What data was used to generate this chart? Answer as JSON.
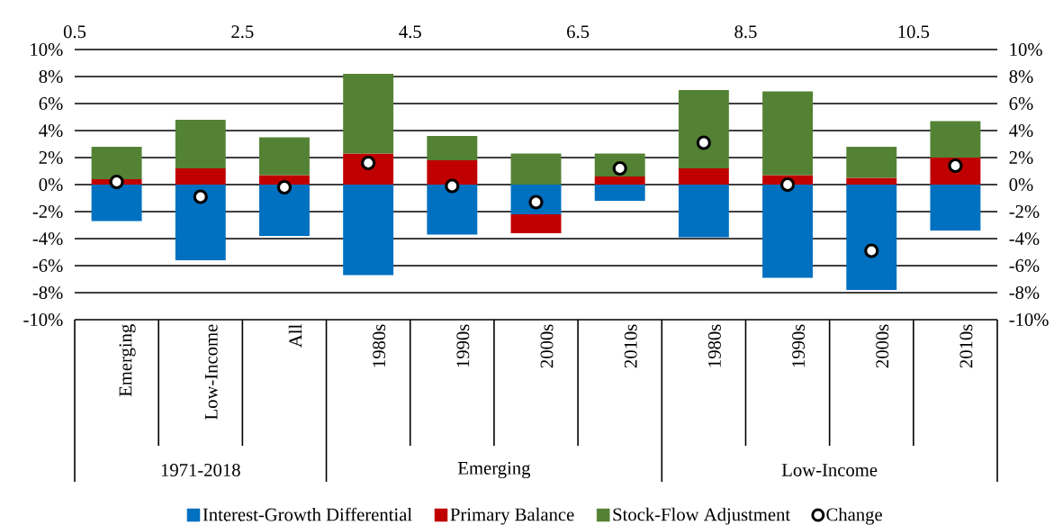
{
  "chart_data": {
    "type": "bar",
    "stacked": true,
    "categories": [
      "Emerging",
      "Low-Income",
      "All",
      "1980s",
      "1990s",
      "2000s",
      "2010s",
      "1980s",
      "1990s",
      "2000s",
      "2010s"
    ],
    "series": [
      {
        "name": "Interest-Growth Differential",
        "color": "#0070c0",
        "values": [
          -2.7,
          -5.6,
          -3.8,
          -6.7,
          -3.7,
          -2.2,
          -1.2,
          -3.9,
          -6.9,
          -7.8,
          -3.4
        ]
      },
      {
        "name": "Primary Balance",
        "color": "#c00000",
        "values": [
          0.4,
          1.2,
          0.7,
          2.3,
          1.8,
          -1.4,
          0.6,
          1.2,
          0.7,
          0.5,
          2.0
        ]
      },
      {
        "name": "Stock-Flow Adjustment",
        "color": "#548235",
        "values": [
          2.4,
          3.6,
          2.8,
          5.9,
          1.8,
          2.3,
          1.7,
          5.8,
          6.2,
          2.3,
          2.7
        ]
      },
      {
        "name": "Change",
        "type": "scatter",
        "marker": "circle",
        "color": "#000000",
        "values": [
          0.2,
          -0.9,
          -0.2,
          1.6,
          -0.1,
          -1.3,
          1.2,
          3.1,
          0.0,
          -4.9,
          1.4
        ]
      }
    ],
    "ylim": [
      -10,
      10
    ],
    "yticks": [
      {
        "value": -10,
        "label": "-10%"
      },
      {
        "value": -8,
        "label": "-8%"
      },
      {
        "value": -6,
        "label": "-6%"
      },
      {
        "value": -4,
        "label": "-4%"
      },
      {
        "value": -2,
        "label": "-2%"
      },
      {
        "value": 0,
        "label": "0%"
      },
      {
        "value": 2,
        "label": "2%"
      },
      {
        "value": 4,
        "label": "4%"
      },
      {
        "value": 6,
        "label": "6%"
      },
      {
        "value": 8,
        "label": "8%"
      },
      {
        "value": 10,
        "label": "10%"
      }
    ],
    "y2lim": [
      -10,
      10
    ],
    "y2ticks": [
      {
        "value": -10,
        "label": "-10%"
      },
      {
        "value": -8,
        "label": "-8%"
      },
      {
        "value": -6,
        "label": "-6%"
      },
      {
        "value": -4,
        "label": "-4%"
      },
      {
        "value": -2,
        "label": "-2%"
      },
      {
        "value": 0,
        "label": "0%"
      },
      {
        "value": 2,
        "label": "2%"
      },
      {
        "value": 4,
        "label": "4%"
      },
      {
        "value": 6,
        "label": "6%"
      },
      {
        "value": 8,
        "label": "8%"
      },
      {
        "value": 10,
        "label": "10%"
      }
    ],
    "x2lim": [
      0.5,
      11.5
    ],
    "x2ticks": [
      0.5,
      2.5,
      4.5,
      6.5,
      8.5,
      10.5
    ],
    "grid": "y",
    "legend": "bottom",
    "annotations": [
      "1971-2018",
      "Emerging",
      "Low-Income"
    ]
  }
}
